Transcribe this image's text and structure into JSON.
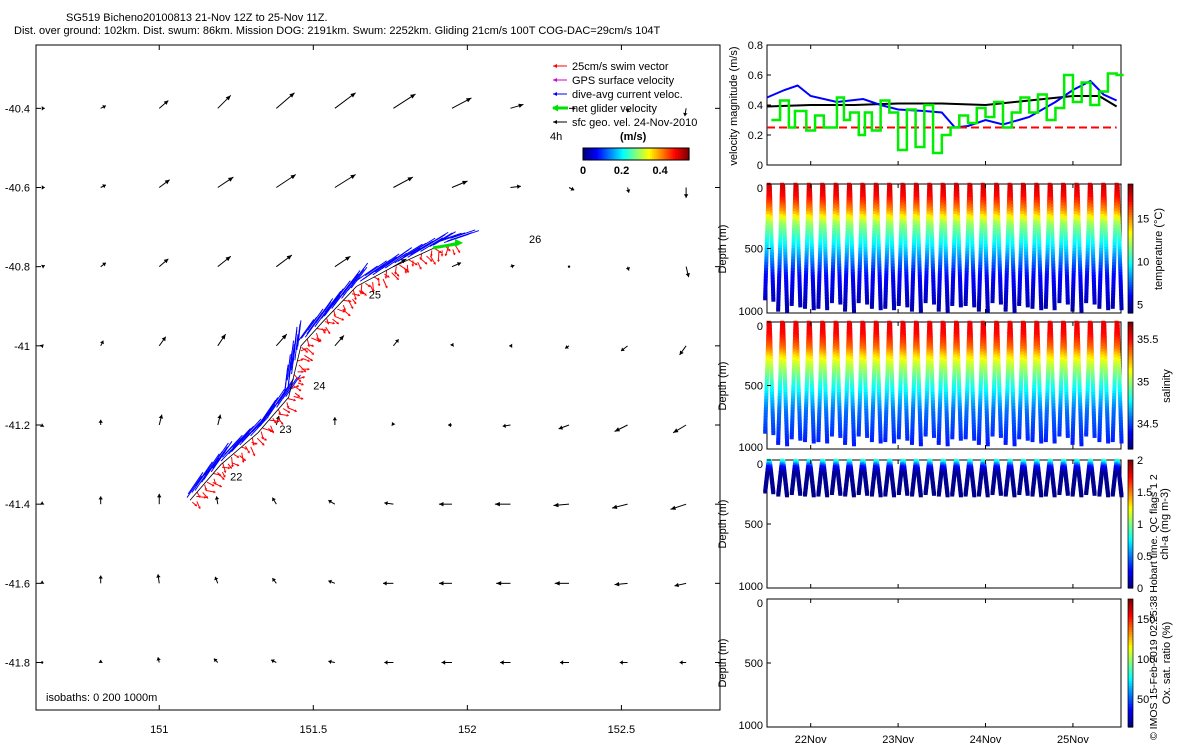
{
  "header": {
    "title_line1": "SG519 Bicheno20100813 21-Nov 12Z to 25-Nov 11Z.",
    "title_line2": "Dist. over ground: 102km. Dist. swum: 86km. Mission DOG: 2191km. Swum: 2252km. Gliding 21cm/s 100T COG-DAC=29cm/s 104T"
  },
  "footer_note": "© IMOS 15-Feb-2019 02:25:38 Hobart time. QC flags 1  2",
  "chart_data": [
    {
      "type": "scatter",
      "panel": "map",
      "xlim": [
        150.6,
        152.82
      ],
      "ylim": [
        -41.92,
        -40.24
      ],
      "xticks": [
        151,
        151.5,
        152,
        152.5
      ],
      "xtick_labels": [
        "151",
        "151.5",
        "152",
        "152.5"
      ],
      "yticks": [
        -40.4,
        -40.6,
        -40.8,
        -41,
        -41.2,
        -41.4,
        -41.6,
        -41.8
      ],
      "ytick_labels": [
        "-40.4",
        "-40.6",
        "-40.8",
        "-41",
        "-41.2",
        "-41.4",
        "-41.6",
        "-41.8"
      ],
      "legend": {
        "position": "top-right",
        "entries": [
          {
            "label": "25cm/s swim vector",
            "color": "#ff0000"
          },
          {
            "label": "GPS surface velocity",
            "color": "#cc00cc"
          },
          {
            "label": "dive-avg current veloc.",
            "color": "#0000ff"
          },
          {
            "label": "net glider velocity",
            "color": "#00e000"
          },
          {
            "label": "sfc geo. vel. 24-Nov-2010",
            "color": "#000000"
          }
        ],
        "scale_label": "4h"
      },
      "colorbar": {
        "title": "(m/s)",
        "min": 0,
        "max": 0.55,
        "ticks": [
          0,
          0.2,
          0.4
        ],
        "tick_labels": [
          "0",
          "0.2",
          "0.4"
        ]
      },
      "isobaths_label": "isobaths: 0   200   1000m",
      "track": [
        [
          151.1,
          -41.39
        ],
        [
          151.2,
          -41.3
        ],
        [
          151.32,
          -41.22
        ],
        [
          151.42,
          -41.13
        ],
        [
          151.46,
          -41.0
        ],
        [
          151.53,
          -40.94
        ],
        [
          151.64,
          -40.85
        ],
        [
          151.76,
          -40.8
        ],
        [
          151.9,
          -40.75
        ],
        [
          151.96,
          -40.74
        ]
      ],
      "day_labels": [
        {
          "text": "22",
          "lon": 151.23,
          "lat": -41.34
        },
        {
          "text": "23",
          "lon": 151.39,
          "lat": -41.22
        },
        {
          "text": "24",
          "lon": 151.5,
          "lat": -41.11
        },
        {
          "text": "25",
          "lon": 151.68,
          "lat": -40.88
        },
        {
          "text": "26",
          "lon": 152.2,
          "lat": -40.74
        }
      ],
      "geo_grid": {
        "lons": [
          150.62,
          150.81,
          151.0,
          151.19,
          151.38,
          151.57,
          151.76,
          151.95,
          152.14,
          152.33,
          152.52,
          152.71
        ],
        "lats": [
          -40.4,
          -40.6,
          -40.8,
          -41.0,
          -41.2,
          -41.4,
          -41.6,
          -41.8
        ],
        "u": [
          [
            0.02,
            0.04,
            0.07,
            0.1,
            0.14,
            0.16,
            0.17,
            0.15,
            0.1,
            0.05,
            0.0,
            -0.01
          ],
          [
            0.02,
            0.04,
            0.08,
            0.12,
            0.15,
            0.16,
            0.15,
            0.12,
            0.08,
            0.04,
            0.01,
            0.0
          ],
          [
            0.02,
            0.04,
            0.07,
            0.1,
            0.12,
            0.12,
            0.1,
            0.07,
            0.03,
            0.0,
            0.01,
            0.02
          ],
          [
            0.01,
            0.02,
            0.05,
            0.06,
            0.08,
            0.07,
            0.04,
            0.01,
            -0.01,
            -0.03,
            -0.05,
            -0.05
          ],
          [
            0.0,
            0.0,
            0.02,
            0.02,
            0.02,
            0.0,
            -0.01,
            -0.03,
            -0.06,
            -0.08,
            -0.1,
            -0.1
          ],
          [
            0.0,
            0.0,
            0.0,
            -0.01,
            -0.03,
            -0.05,
            -0.07,
            -0.1,
            -0.12,
            -0.12,
            -0.12,
            -0.12
          ],
          [
            0.0,
            0.0,
            -0.01,
            -0.02,
            -0.03,
            -0.05,
            -0.08,
            -0.1,
            -0.11,
            -0.11,
            -0.1,
            -0.09
          ],
          [
            0.0,
            0.0,
            -0.01,
            -0.03,
            -0.04,
            -0.05,
            -0.07,
            -0.08,
            -0.08,
            -0.07,
            -0.06,
            -0.05
          ]
        ],
        "v": [
          [
            0.0,
            0.02,
            0.06,
            0.1,
            0.12,
            0.12,
            0.11,
            0.08,
            0.03,
            0.0,
            -0.03,
            -0.06
          ],
          [
            0.0,
            0.02,
            0.06,
            0.08,
            0.1,
            0.1,
            0.08,
            0.05,
            0.01,
            -0.02,
            -0.04,
            -0.08
          ],
          [
            0.01,
            0.03,
            0.06,
            0.08,
            0.09,
            0.08,
            0.06,
            0.03,
            0.01,
            0.0,
            -0.03,
            -0.08
          ],
          [
            0.01,
            0.04,
            0.07,
            0.09,
            0.09,
            0.08,
            0.05,
            0.02,
            0.0,
            -0.02,
            -0.04,
            -0.07
          ],
          [
            0.01,
            0.04,
            0.08,
            0.08,
            0.07,
            0.06,
            0.02,
            0.0,
            -0.01,
            -0.03,
            -0.05,
            -0.06
          ],
          [
            0.02,
            0.06,
            0.08,
            0.06,
            0.05,
            0.03,
            0.01,
            0.0,
            0.0,
            -0.01,
            -0.03,
            -0.04
          ],
          [
            0.02,
            0.06,
            0.07,
            0.05,
            0.04,
            0.02,
            0.0,
            0.0,
            0.0,
            0.0,
            -0.01,
            -0.02
          ],
          [
            0.0,
            0.02,
            0.04,
            0.03,
            0.02,
            0.01,
            0.0,
            0.0,
            0.0,
            0.0,
            0.0,
            0.0
          ]
        ]
      }
    },
    {
      "type": "line",
      "panel": "velocity-magnitude",
      "ylabel": "velocity magnitude (m/s)",
      "ylim": [
        0,
        0.8
      ],
      "yticks": [
        0,
        0.2,
        0.4,
        0.6,
        0.8
      ],
      "ytick_labels": [
        "0",
        "0.2",
        "0.4",
        "0.6",
        "0.8"
      ],
      "series": [
        {
          "color": "#000000",
          "x": [
            21.5,
            22.0,
            22.5,
            23.0,
            23.5,
            24.0,
            24.5,
            25.0,
            25.3,
            25.5
          ],
          "values": [
            0.39,
            0.4,
            0.4,
            0.41,
            0.41,
            0.4,
            0.43,
            0.46,
            0.46,
            0.39
          ]
        },
        {
          "color": "#0000ff",
          "x": [
            21.5,
            21.7,
            21.85,
            22.0,
            22.3,
            22.6,
            22.8,
            23.0,
            23.3,
            23.5,
            23.65,
            23.8,
            24.0,
            24.2,
            24.5,
            24.8,
            25.0,
            25.2,
            25.35,
            25.5
          ],
          "values": [
            0.45,
            0.5,
            0.53,
            0.46,
            0.42,
            0.44,
            0.4,
            0.37,
            0.36,
            0.35,
            0.25,
            0.26,
            0.3,
            0.27,
            0.32,
            0.42,
            0.5,
            0.56,
            0.47,
            0.43
          ]
        },
        {
          "color": "#ff0000",
          "dashed": true,
          "x": [
            21.5,
            25.5
          ],
          "values": [
            0.25,
            0.25
          ]
        },
        {
          "color": "#00ee00",
          "step": true,
          "x": [
            21.55,
            21.65,
            21.75,
            21.82,
            21.95,
            22.05,
            22.15,
            22.3,
            22.38,
            22.45,
            22.55,
            22.62,
            22.7,
            22.8,
            22.9,
            23.0,
            23.1,
            23.2,
            23.3,
            23.4,
            23.5,
            23.6,
            23.7,
            23.8,
            23.9,
            24.0,
            24.1,
            24.2,
            24.3,
            24.4,
            24.5,
            24.6,
            24.7,
            24.8,
            24.9,
            25.0,
            25.1,
            25.2,
            25.3,
            25.4,
            25.5
          ],
          "values": [
            0.3,
            0.43,
            0.25,
            0.36,
            0.23,
            0.33,
            0.25,
            0.45,
            0.3,
            0.35,
            0.2,
            0.35,
            0.23,
            0.43,
            0.35,
            0.1,
            0.37,
            0.12,
            0.4,
            0.08,
            0.2,
            0.25,
            0.33,
            0.28,
            0.38,
            0.32,
            0.42,
            0.25,
            0.35,
            0.45,
            0.35,
            0.47,
            0.3,
            0.38,
            0.6,
            0.42,
            0.55,
            0.4,
            0.49,
            0.61,
            0.6
          ]
        }
      ]
    },
    {
      "type": "scatter",
      "panel": "temperature",
      "ylabel": "Depth (m)",
      "ylim": [
        1000,
        0
      ],
      "yticks": [
        0,
        500,
        1000
      ],
      "ytick_labels": [
        "0",
        "500",
        "1000"
      ],
      "colorbar": {
        "label": "temperature (°C)",
        "min": 4,
        "max": 19,
        "ticks": [
          5,
          10,
          15
        ],
        "tick_labels": [
          "5",
          "10",
          "15"
        ]
      },
      "dive_count": 27,
      "max_depth": 980,
      "profile": {
        "depths": [
          0,
          100,
          200,
          300,
          500,
          700,
          1000
        ],
        "values": [
          18,
          17,
          15,
          12,
          9,
          6,
          4.5
        ]
      }
    },
    {
      "type": "scatter",
      "panel": "salinity",
      "ylabel": "Depth (m)",
      "ylim": [
        1000,
        0
      ],
      "yticks": [
        0,
        500,
        1000
      ],
      "ytick_labels": [
        "0",
        "500",
        "1000"
      ],
      "colorbar": {
        "label": "salinity",
        "min": 34.2,
        "max": 35.7,
        "ticks": [
          34.5,
          35,
          35.5
        ],
        "tick_labels": [
          "34.5",
          "35",
          "35.5"
        ]
      },
      "dive_count": 27,
      "max_depth": 960,
      "profile": {
        "depths": [
          0,
          100,
          200,
          300,
          500,
          700,
          1000
        ],
        "values": [
          35.55,
          35.5,
          35.35,
          35.1,
          34.8,
          34.55,
          34.4
        ]
      }
    },
    {
      "type": "scatter",
      "panel": "chlorophyll",
      "ylabel": "Depth (m)",
      "ylim": [
        1000,
        0
      ],
      "yticks": [
        0,
        500,
        1000
      ],
      "ytick_labels": [
        "0",
        "500",
        "1000"
      ],
      "colorbar": {
        "label": "chl-a (mg m-3)",
        "min": 0,
        "max": 2,
        "ticks": [
          0,
          0.5,
          1,
          1.5,
          2
        ],
        "tick_labels": [
          "0",
          "0.5",
          "1",
          "1.5",
          "2"
        ]
      },
      "dive_count": 27,
      "max_depth": 280,
      "profile": {
        "depths": [
          0,
          20,
          50,
          100,
          300
        ],
        "values": [
          0.9,
          0.7,
          0.3,
          0.05,
          0.02
        ]
      }
    },
    {
      "type": "scatter",
      "panel": "oxygen",
      "ylabel": "Depth (m)",
      "ylim": [
        1000,
        0
      ],
      "yticks": [
        0,
        500,
        1000
      ],
      "ytick_labels": [
        "0",
        "500",
        "1000"
      ],
      "colorbar": {
        "label": "Ox. sat. ratio (%)",
        "min": 15,
        "max": 175,
        "ticks": [
          50,
          100,
          150
        ],
        "tick_labels": [
          "50",
          "100",
          "150"
        ]
      },
      "dive_count": 0
    },
    {
      "type": "line",
      "panel": "time-axis",
      "xlim": [
        21.5,
        25.55
      ],
      "xticks": [
        22,
        23,
        24,
        25
      ],
      "xtick_labels": [
        "22Nov",
        "23Nov",
        "24Nov",
        "25Nov"
      ]
    }
  ]
}
